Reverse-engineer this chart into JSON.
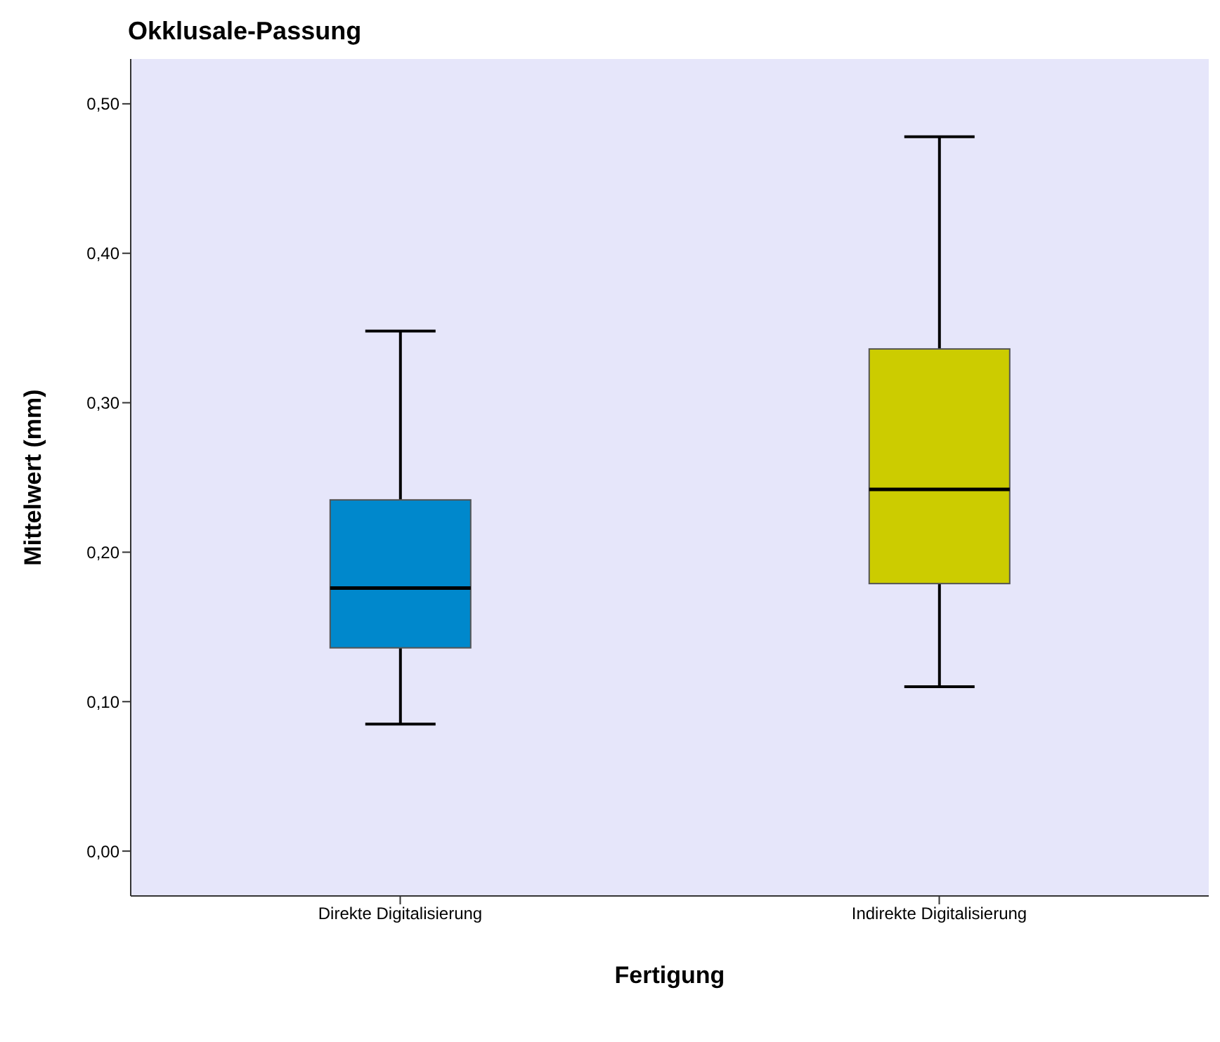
{
  "chart_data": {
    "type": "box",
    "title": "Okklusale-Passung",
    "xlabel": "Fertigung",
    "ylabel": "Mittelwert (mm)",
    "categories": [
      "Direkte Digitalisierung",
      "Indirekte Digitalisierung"
    ],
    "colors": [
      "#0088cc",
      "#cccc00"
    ],
    "boxes": [
      {
        "low": 0.085,
        "q1": 0.136,
        "median": 0.176,
        "q3": 0.235,
        "high": 0.348
      },
      {
        "low": 0.11,
        "q1": 0.179,
        "median": 0.242,
        "q3": 0.336,
        "high": 0.478
      }
    ],
    "ylim": [
      -0.03,
      0.53
    ],
    "yticks": [
      {
        "value": 0,
        "label": "0,00"
      },
      {
        "value": 0.1,
        "label": "0,10"
      },
      {
        "value": 0.2,
        "label": "0,20"
      },
      {
        "value": 0.3,
        "label": "0,30"
      },
      {
        "value": 0.4,
        "label": "0,40"
      },
      {
        "value": 0.5,
        "label": "0,50"
      }
    ],
    "grid": false
  }
}
